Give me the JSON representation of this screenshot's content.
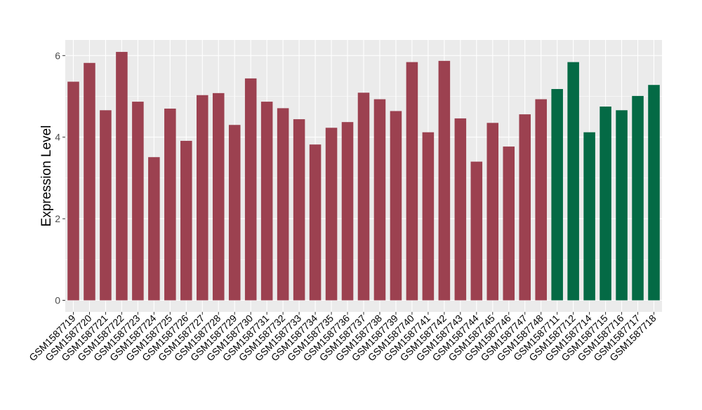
{
  "chart_data": {
    "type": "bar",
    "title": "",
    "xlabel": "",
    "ylabel": "Expression Level",
    "ylim": [
      0,
      6.2
    ],
    "yticks": [
      0,
      2,
      4,
      6
    ],
    "grid": true,
    "legend": "none",
    "categories": [
      "GSM1587719",
      "GSM1587720",
      "GSM1587721",
      "GSM1587722",
      "GSM1587723",
      "GSM1587724",
      "GSM1587725",
      "GSM1587726",
      "GSM1587727",
      "GSM1587728",
      "GSM1587729",
      "GSM1587730",
      "GSM1587731",
      "GSM1587732",
      "GSM1587733",
      "GSM1587734",
      "GSM1587735",
      "GSM1587736",
      "GSM1587737",
      "GSM1587738",
      "GSM1587739",
      "GSM1587740",
      "GSM1587741",
      "GSM1587742",
      "GSM1587743",
      "GSM1587744",
      "GSM1587745",
      "GSM1587746",
      "GSM1587747",
      "GSM1587748",
      "GSM1587711",
      "GSM1587712",
      "GSM1587714",
      "GSM1587715",
      "GSM1587716",
      "GSM1587717",
      "GSM1587718"
    ],
    "values": [
      5.36,
      5.82,
      4.66,
      6.09,
      4.87,
      3.51,
      4.7,
      3.91,
      5.03,
      5.08,
      4.3,
      5.44,
      4.87,
      4.71,
      4.44,
      3.82,
      4.23,
      4.37,
      5.09,
      4.93,
      4.64,
      5.84,
      4.12,
      5.87,
      4.46,
      3.4,
      4.35,
      3.77,
      4.56,
      4.93,
      5.18,
      5.84,
      4.12,
      4.75,
      4.66,
      5.01,
      5.28
    ],
    "groups": [
      "a",
      "a",
      "a",
      "a",
      "a",
      "a",
      "a",
      "a",
      "a",
      "a",
      "a",
      "a",
      "a",
      "a",
      "a",
      "a",
      "a",
      "a",
      "a",
      "a",
      "a",
      "a",
      "a",
      "a",
      "a",
      "a",
      "a",
      "a",
      "a",
      "a",
      "b",
      "b",
      "b",
      "b",
      "b",
      "b",
      "b"
    ],
    "colors": {
      "a": "#9c4150",
      "b": "#046a45",
      "panel": "#ebebeb",
      "grid": "#ffffff",
      "axis_text": "#4d4d4d",
      "title_text": "#000000"
    }
  }
}
